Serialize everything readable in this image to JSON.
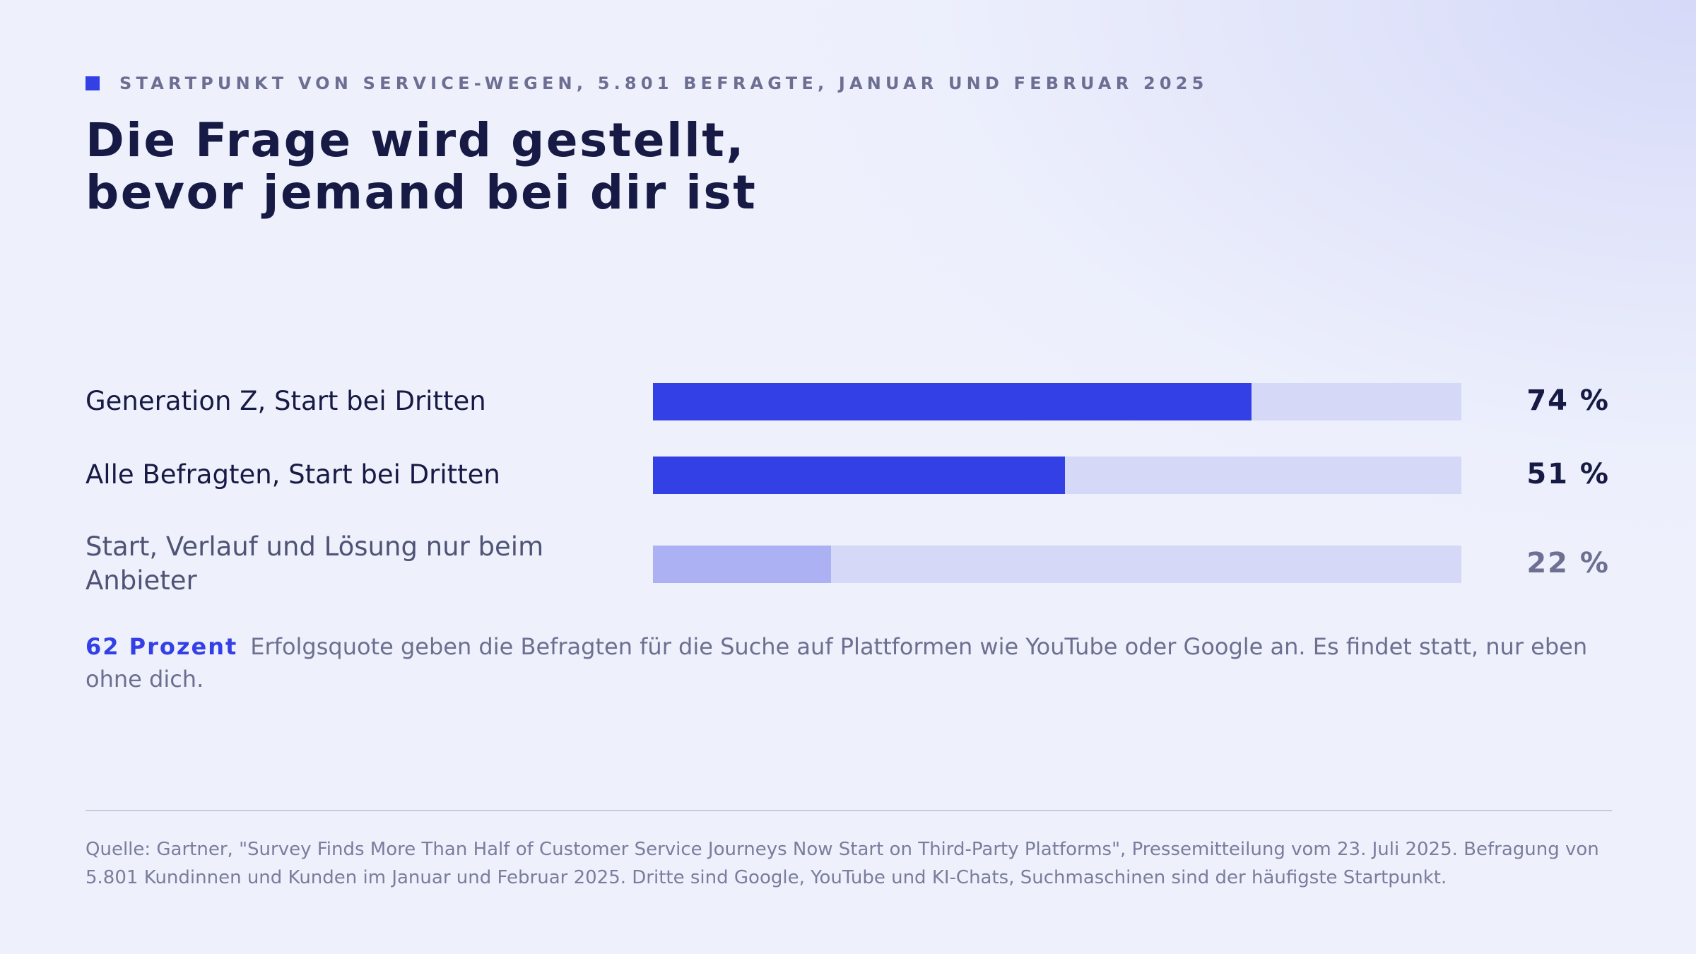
{
  "header": {
    "eyebrow": "STARTPUNKT VON SERVICE-WEGEN, 5.801 BEFRAGTE, JANUAR UND FEBRUAR 2025",
    "title_line1": "Die Frage wird gestellt,",
    "title_line2": "bevor jemand bei dir ist"
  },
  "colors": {
    "accent": "#3340e6",
    "accent_muted": "#abb1f3",
    "track": "#d5d8f7",
    "text_dark": "#171a44"
  },
  "chart_data": {
    "type": "bar",
    "orientation": "horizontal",
    "xlim": [
      0,
      100
    ],
    "categories": [
      "Generation Z, Start bei Dritten",
      "Alle Befragten, Start bei Dritten",
      "Start, Verlauf und Lösung nur beim Anbieter"
    ],
    "values": [
      74,
      51,
      22
    ],
    "value_labels": [
      "74 %",
      "51 %",
      "22 %"
    ],
    "highlight": [
      true,
      true,
      false
    ]
  },
  "callout": {
    "highlight": "62 Prozent",
    "text": "Erfolgsquote geben die Befragten für die Suche auf Plattformen wie YouTube oder Google an. Es findet statt, nur eben ohne dich."
  },
  "footer": {
    "source": "Quelle: Gartner, \"Survey Finds More Than Half of Customer Service Journeys Now Start on Third-Party Platforms\", Pressemitteilung vom 23. Juli 2025. Befragung von 5.801 Kundinnen und Kunden im Januar und Februar 2025. Dritte sind Google, YouTube und KI-Chats, Suchmaschinen sind der häufigste Startpunkt."
  }
}
